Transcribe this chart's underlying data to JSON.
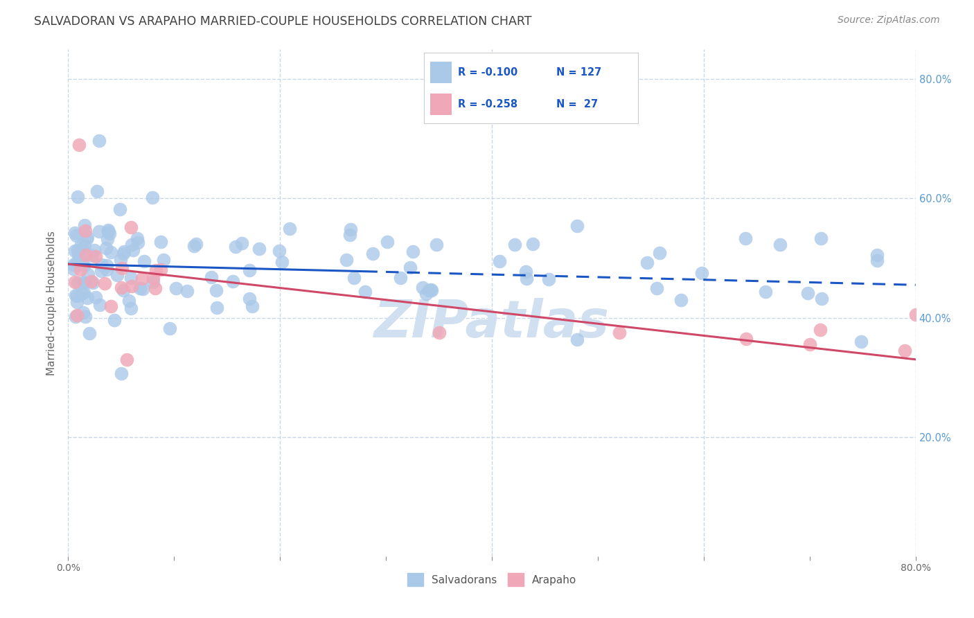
{
  "title": "SALVADORAN VS ARAPAHO MARRIED-COUPLE HOUSEHOLDS CORRELATION CHART",
  "source": "Source: ZipAtlas.com",
  "legend_labels": [
    "Salvadorans",
    "Arapaho"
  ],
  "ylabel": "Married-couple Households",
  "R_salvadoran": -0.1,
  "N_salvadoran": 127,
  "R_arapaho": -0.258,
  "N_arapaho": 27,
  "blue_color": "#aac8e8",
  "pink_color": "#f0a8b8",
  "trendline_blue": "#1a56c4",
  "trendline_pink": "#d04868",
  "watermark": "ZIPatlas",
  "watermark_color": "#d0e0f0",
  "title_color": "#404040",
  "right_axis_color": "#5b9bd5",
  "grid_color": "#c8d8e8",
  "legend_border_color": "#cccccc",
  "xlim": [
    0.0,
    0.8
  ],
  "ylim": [
    0.0,
    0.85
  ],
  "ytick_positions": [
    0.2,
    0.4,
    0.6,
    0.8
  ],
  "ytick_labels": [
    "20.0%",
    "40.0%",
    "60.0%",
    "80.0%"
  ],
  "xtick_positions": [
    0.0,
    0.1,
    0.2,
    0.3,
    0.4,
    0.5,
    0.6,
    0.7,
    0.8
  ],
  "xtick_labels": [
    "0.0%",
    "",
    "",
    "",
    "",
    "",
    "",
    "",
    "80.0%"
  ],
  "trendline_solid_end": 0.28,
  "sal_trendline_y0": 0.49,
  "sal_trendline_y1": 0.455,
  "ara_trendline_y0": 0.49,
  "ara_trendline_y1": 0.33
}
